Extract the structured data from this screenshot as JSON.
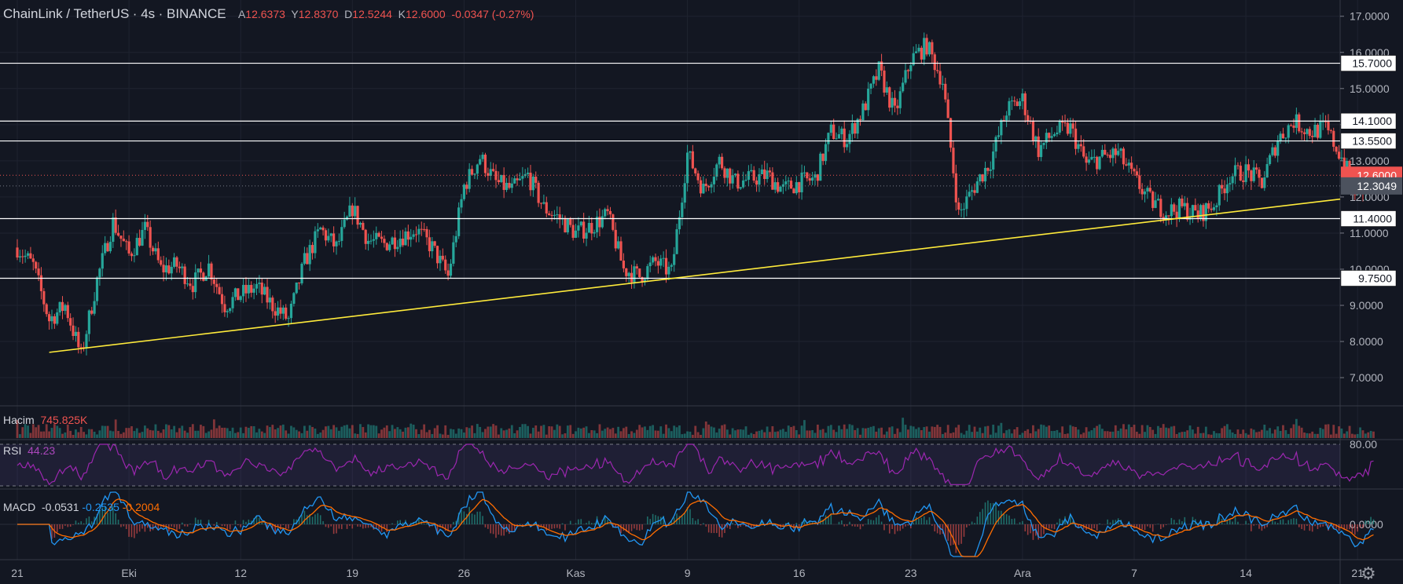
{
  "header": {
    "symbol": "ChainLink / TetherUS",
    "interval": "4s",
    "exchange": "BINANCE",
    "ohlc": [
      {
        "label": "A",
        "value": "12.6373"
      },
      {
        "label": "Y",
        "value": "12.8370"
      },
      {
        "label": "D",
        "value": "12.5244"
      },
      {
        "label": "K",
        "value": "12.6000"
      }
    ],
    "change": "-0.0347 (-0.27%)"
  },
  "colors": {
    "background": "#131722",
    "up": "#26a69a",
    "down": "#ef5350",
    "trendline": "#ffeb3b",
    "level": "#ffffff",
    "rsi": "#9c27b0",
    "macd_line": "#2196f3",
    "signal_line": "#ff6d00"
  },
  "chart_data": {
    "type": "candlestick",
    "price_axis": {
      "ticks": [
        "17.0000",
        "16.0000",
        "15.0000",
        "14.0000",
        "13.0000",
        "12.0000",
        "11.0000",
        "10.0000",
        "9.0000",
        "8.0000",
        "7.0000"
      ],
      "range": [
        6.22,
        17.45
      ]
    },
    "time_axis": {
      "ticks": [
        "21",
        "Eki",
        "12",
        "19",
        "26",
        "Kas",
        "9",
        "16",
        "23",
        "Ara",
        "7",
        "14",
        "21"
      ]
    },
    "horizontal_levels": [
      "15.7000",
      "14.1000",
      "13.5500",
      "11.4000",
      "9.7500"
    ],
    "last_price": "12.6000",
    "crosshair_price": "12.3049",
    "trendline": {
      "from": {
        "day": 2,
        "price": 7.7
      },
      "to": {
        "day": 85,
        "price": 12.05
      }
    },
    "price_path": [
      [
        0,
        10.6
      ],
      [
        1,
        10.1
      ],
      [
        2,
        8.6
      ],
      [
        3,
        9.0
      ],
      [
        4,
        7.6
      ],
      [
        5,
        9.7
      ],
      [
        6,
        11.3
      ],
      [
        7,
        10.4
      ],
      [
        8,
        11.1
      ],
      [
        9,
        10.0
      ],
      [
        10,
        10.1
      ],
      [
        11,
        9.6
      ],
      [
        12,
        10.1
      ],
      [
        13,
        9.0
      ],
      [
        14,
        9.3
      ],
      [
        15,
        9.5
      ],
      [
        16,
        9.0
      ],
      [
        17,
        8.6
      ],
      [
        18,
        10.2
      ],
      [
        19,
        11.1
      ],
      [
        20,
        10.6
      ],
      [
        21,
        11.7
      ],
      [
        22,
        10.8
      ],
      [
        23,
        10.7
      ],
      [
        24,
        10.9
      ],
      [
        25,
        11.1
      ],
      [
        26,
        10.6
      ],
      [
        27,
        9.8
      ],
      [
        28,
        12.3
      ],
      [
        29,
        13.1
      ],
      [
        30,
        12.4
      ],
      [
        31,
        12.2
      ],
      [
        32,
        12.6
      ],
      [
        33,
        11.7
      ],
      [
        34,
        11.4
      ],
      [
        35,
        11.0
      ],
      [
        36,
        11.2
      ],
      [
        37,
        11.5
      ],
      [
        38,
        10.0
      ],
      [
        39,
        9.8
      ],
      [
        40,
        10.2
      ],
      [
        41,
        9.9
      ],
      [
        42,
        13.2
      ],
      [
        43,
        12.2
      ],
      [
        44,
        13.0
      ],
      [
        45,
        12.4
      ],
      [
        46,
        12.5
      ],
      [
        47,
        12.6
      ],
      [
        48,
        12.2
      ],
      [
        49,
        12.4
      ],
      [
        50,
        12.5
      ],
      [
        51,
        13.8
      ],
      [
        52,
        13.6
      ],
      [
        53,
        14.4
      ],
      [
        54,
        15.5
      ],
      [
        55,
        14.3
      ],
      [
        56,
        15.8
      ],
      [
        57,
        16.2
      ],
      [
        58,
        15.2
      ],
      [
        59,
        11.5
      ],
      [
        60,
        12.3
      ],
      [
        61,
        13.0
      ],
      [
        62,
        14.4
      ],
      [
        63,
        14.7
      ],
      [
        64,
        13.3
      ],
      [
        65,
        13.8
      ],
      [
        66,
        13.9
      ],
      [
        67,
        12.9
      ],
      [
        68,
        13.1
      ],
      [
        69,
        13.2
      ],
      [
        70,
        12.5
      ],
      [
        71,
        11.9
      ],
      [
        72,
        11.6
      ],
      [
        73,
        11.7
      ],
      [
        74,
        11.5
      ],
      [
        75,
        11.8
      ],
      [
        76,
        12.6
      ],
      [
        77,
        12.7
      ],
      [
        78,
        12.4
      ],
      [
        79,
        13.6
      ],
      [
        80,
        14.1
      ],
      [
        81,
        13.8
      ],
      [
        82,
        13.9
      ],
      [
        83,
        13.1
      ],
      [
        84,
        12.0
      ],
      [
        85,
        12.6
      ]
    ],
    "panes": {
      "volume": {
        "label": "Hacim",
        "value": "745.825K"
      },
      "rsi": {
        "label": "RSI",
        "value": "44.23",
        "levels": [
          "80.00"
        ]
      },
      "macd": {
        "label": "MACD",
        "values": [
          "-0.0531",
          "-0.2535",
          "-0.2004"
        ],
        "axis_tick": "0.0000"
      }
    }
  }
}
